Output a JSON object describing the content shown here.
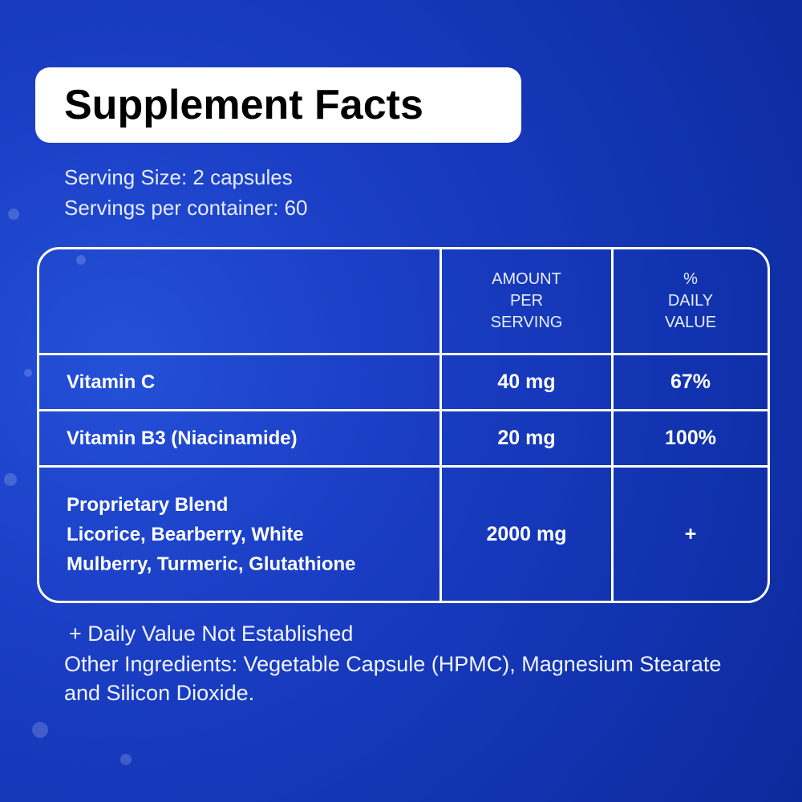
{
  "title": "Supplement Facts",
  "serving": [
    "Serving Size: 2 capsules",
    "Servings per container: 60"
  ],
  "table": {
    "header": [
      [
        "AMOUNT",
        "PER",
        "SERVING"
      ],
      [
        "%",
        "DAILY",
        "VALUE"
      ]
    ],
    "rows": [
      {
        "name": "Vitamin C",
        "amount": "40 mg",
        "dv": "67%"
      },
      {
        "name": "Vitamin B3 (Niacinamide)",
        "amount": "20 mg",
        "dv": "100%"
      },
      {
        "name": "Proprietary Blend",
        "ingredients": "Licorice, Bearberry, White Mulberry, Turmeric, Glutathione",
        "amount": "2000 mg",
        "dv": "+"
      }
    ]
  },
  "footnotes": [
    "+ Daily Value Not Established",
    "Other Ingredients: Vegetable Capsule (HPMC), Magnesium Stearate and Silicon Dioxide."
  ]
}
